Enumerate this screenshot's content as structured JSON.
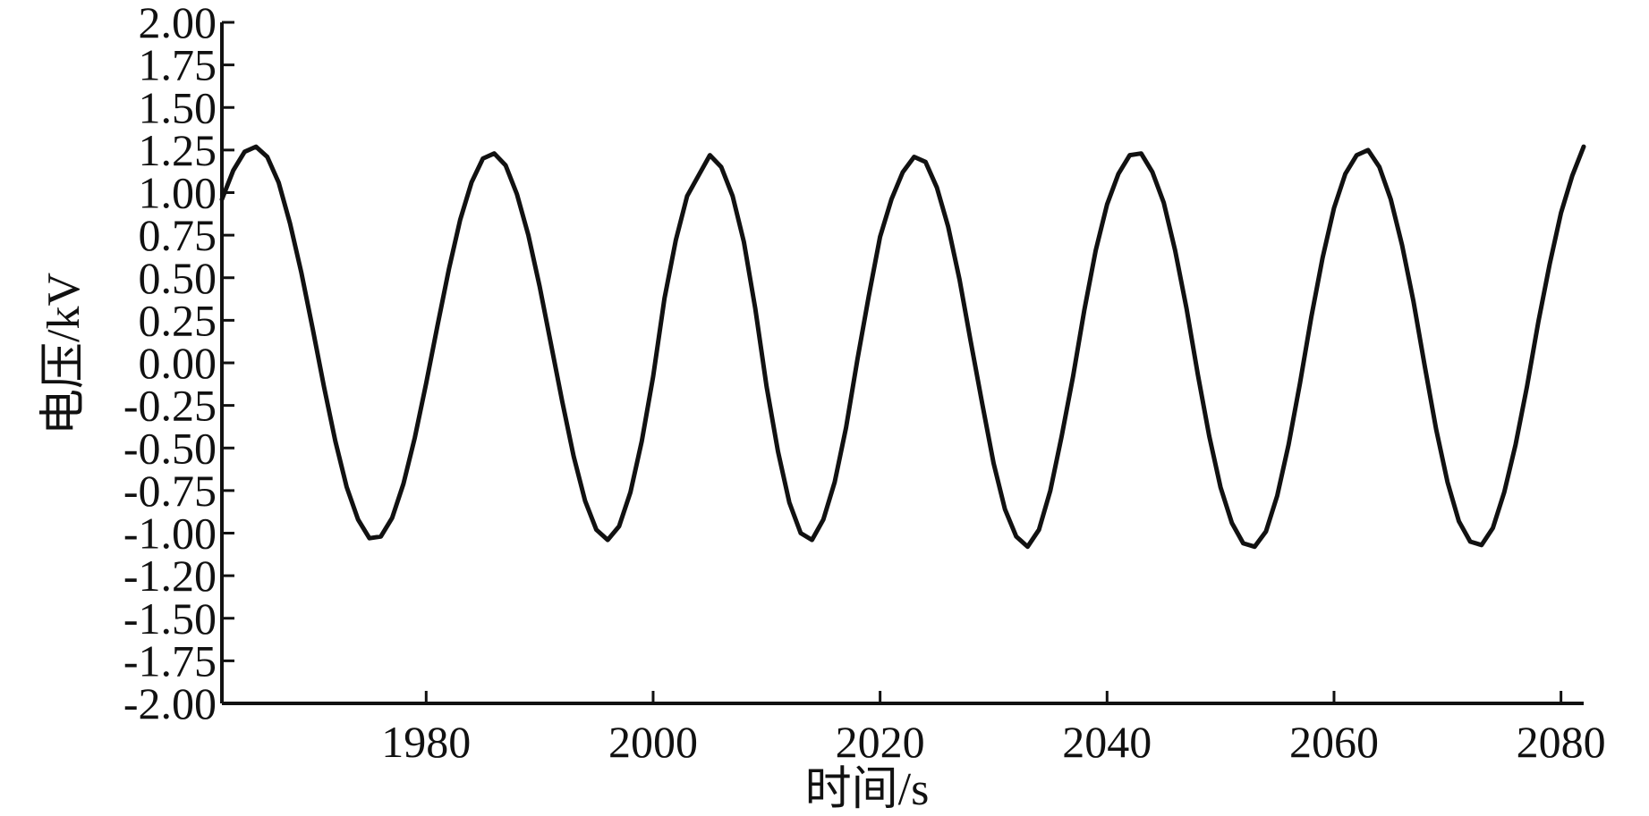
{
  "chart_data": {
    "type": "line",
    "title": "",
    "xlabel": "时间/s",
    "ylabel": "电压/kV",
    "xlim": [
      1962,
      2082
    ],
    "ylim": [
      -2.0,
      2.0
    ],
    "grid": false,
    "legend": "none",
    "line_color": "#111111",
    "x_ticks": [
      1980,
      2000,
      2020,
      2040,
      2060,
      2080
    ],
    "x_tick_labels": [
      "1980",
      "2000",
      "2020",
      "2040",
      "2060",
      "2080"
    ],
    "y_tick_labels": [
      "2.00",
      "1.75",
      "1.50",
      "1.25",
      "1.00",
      "0.75",
      "0.50",
      "0.25",
      "0.00",
      "-0.25",
      "-0.50",
      "-0.75",
      "-1.00",
      "-1.20",
      "-1.50",
      "-1.75",
      "-2.00"
    ],
    "series": [
      {
        "x": [
          1962,
          1963,
          1964,
          1965,
          1966,
          1967,
          1968,
          1969,
          1970,
          1971,
          1972,
          1973,
          1974,
          1975,
          1976,
          1977,
          1978,
          1979,
          1980,
          1981,
          1982,
          1983,
          1984,
          1985,
          1986,
          1987,
          1988,
          1989,
          1990,
          1991,
          1992,
          1993,
          1994,
          1995,
          1996,
          1997,
          1998,
          1999,
          2000,
          2001,
          2002,
          2003,
          2004,
          2005,
          2006,
          2007,
          2008,
          2009,
          2010,
          2011,
          2012,
          2013,
          2014,
          2015,
          2016,
          2017,
          2018,
          2019,
          2020,
          2021,
          2022,
          2023,
          2024,
          2025,
          2026,
          2027,
          2028,
          2029,
          2030,
          2031,
          2032,
          2033,
          2034,
          2035,
          2036,
          2037,
          2038,
          2039,
          2040,
          2041,
          2042,
          2043,
          2044,
          2045,
          2046,
          2047,
          2048,
          2049,
          2050,
          2051,
          2052,
          2053,
          2054,
          2055,
          2056,
          2057,
          2058,
          2059,
          2060,
          2061,
          2062,
          2063,
          2064,
          2065,
          2066,
          2067,
          2068,
          2069,
          2070,
          2071,
          2072,
          2073,
          2074,
          2075,
          2076,
          2077,
          2078,
          2079,
          2080,
          2081,
          2082
        ],
        "y": [
          0.96,
          1.13,
          1.24,
          1.27,
          1.21,
          1.06,
          0.82,
          0.53,
          0.2,
          -0.14,
          -0.46,
          -0.73,
          -0.92,
          -1.03,
          -1.02,
          -0.91,
          -0.71,
          -0.44,
          -0.12,
          0.22,
          0.55,
          0.84,
          1.06,
          1.2,
          1.23,
          1.16,
          0.99,
          0.75,
          0.45,
          0.11,
          -0.23,
          -0.55,
          -0.81,
          -0.98,
          -1.04,
          -0.96,
          -0.76,
          -0.46,
          -0.08,
          0.38,
          0.72,
          0.98,
          1.1,
          1.22,
          1.15,
          0.98,
          0.71,
          0.32,
          -0.14,
          -0.52,
          -0.82,
          -1.0,
          -1.04,
          -0.92,
          -0.7,
          -0.38,
          0.02,
          0.39,
          0.74,
          0.96,
          1.12,
          1.21,
          1.18,
          1.03,
          0.8,
          0.49,
          0.12,
          -0.24,
          -0.59,
          -0.86,
          -1.02,
          -1.08,
          -0.98,
          -0.75,
          -0.43,
          -0.08,
          0.31,
          0.66,
          0.93,
          1.11,
          1.22,
          1.23,
          1.12,
          0.94,
          0.66,
          0.32,
          -0.07,
          -0.43,
          -0.73,
          -0.94,
          -1.06,
          -1.08,
          -0.99,
          -0.78,
          -0.48,
          -0.12,
          0.27,
          0.62,
          0.91,
          1.11,
          1.22,
          1.25,
          1.15,
          0.96,
          0.69,
          0.36,
          -0.02,
          -0.39,
          -0.7,
          -0.93,
          -1.05,
          -1.07,
          -0.97,
          -0.76,
          -0.48,
          -0.14,
          0.24,
          0.58,
          0.88,
          1.1,
          1.27
        ]
      }
    ]
  }
}
